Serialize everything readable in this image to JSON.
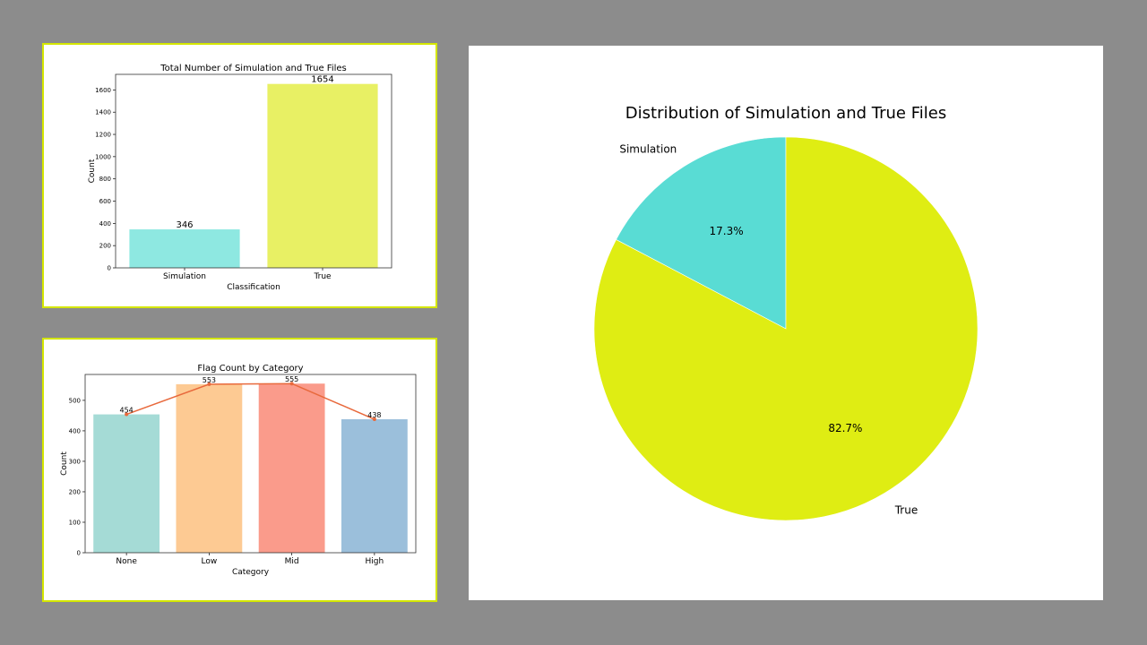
{
  "chart_data": [
    {
      "type": "bar",
      "title": "Total Number of Simulation and True Files",
      "xlabel": "Classification",
      "ylabel": "Count",
      "categories": [
        "Simulation",
        "True"
      ],
      "values": [
        346,
        1654
      ],
      "data_labels": [
        "346",
        "1654"
      ],
      "ylim": [
        0,
        1740
      ],
      "yticks": [
        0,
        200,
        400,
        600,
        800,
        1000,
        1200,
        1400,
        1600
      ],
      "colors": [
        "#8ee8e1",
        "#e8f064"
      ],
      "grid": false
    },
    {
      "type": "bar",
      "title": "Flag Count by Category",
      "xlabel": "Category",
      "ylabel": "Count",
      "categories": [
        "None",
        "Low",
        "Mid",
        "High"
      ],
      "values": [
        454,
        553,
        555,
        438
      ],
      "data_labels": [
        "454",
        "553",
        "555",
        "438"
      ],
      "overlay_line": true,
      "line_color": "#e8693c",
      "ylim": [
        0,
        585
      ],
      "yticks": [
        0,
        100,
        200,
        300,
        400,
        500
      ],
      "colors": [
        "#a5dbd6",
        "#fdca93",
        "#fa9b8b",
        "#9bbfdb"
      ],
      "grid": false
    },
    {
      "type": "pie",
      "title": "Distribution of Simulation and True Files",
      "labels": [
        "Simulation",
        "True"
      ],
      "values": [
        17.3,
        82.7
      ],
      "pct_labels": [
        "17.3%",
        "82.7%"
      ],
      "colors": [
        "#59dcd4",
        "#dfed13"
      ]
    }
  ]
}
